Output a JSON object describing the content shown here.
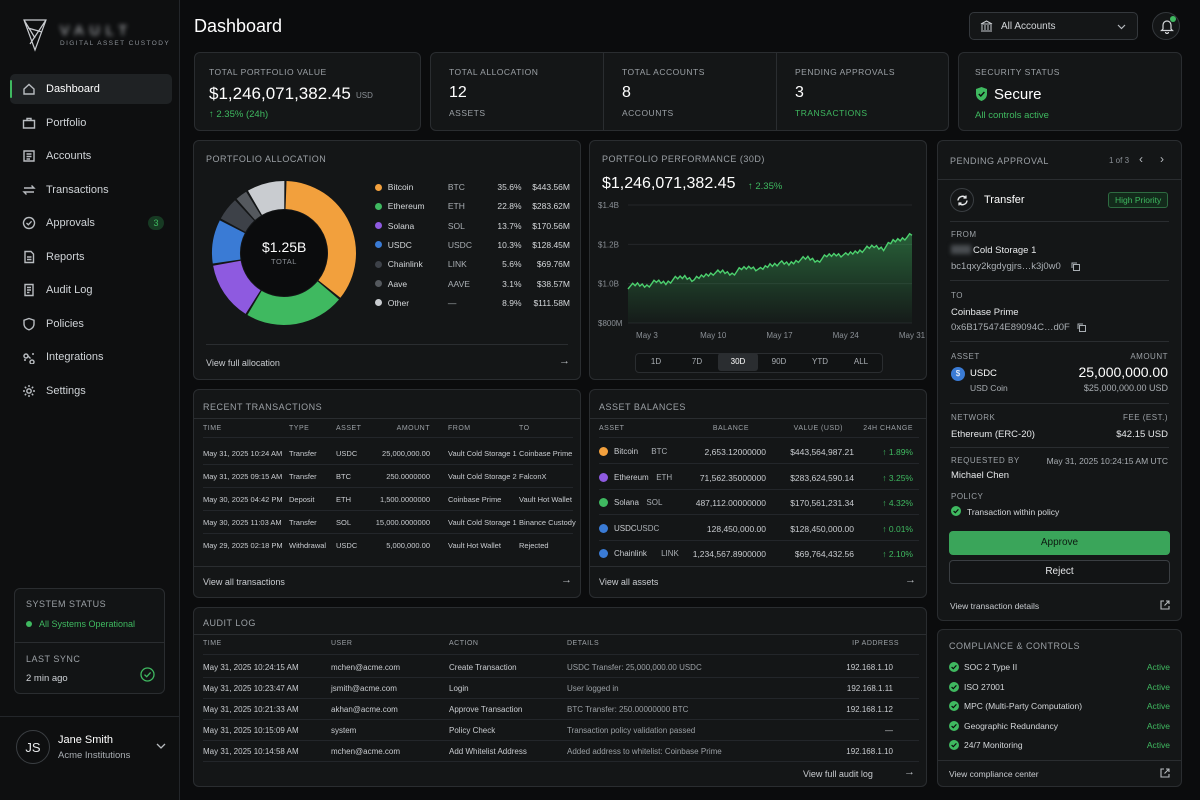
{
  "brand": {
    "name": "VAULT",
    "tagline": "DIGITAL ASSET CUSTODY"
  },
  "sidebar": {
    "items": [
      {
        "label": "Dashboard",
        "icon": "home-icon"
      },
      {
        "label": "Portfolio",
        "icon": "briefcase-icon"
      },
      {
        "label": "Accounts",
        "icon": "accounts-icon"
      },
      {
        "label": "Transactions",
        "icon": "transfer-icon"
      },
      {
        "label": "Approvals",
        "icon": "check-circle-icon",
        "badge": "3"
      },
      {
        "label": "Reports",
        "icon": "report-icon"
      },
      {
        "label": "Audit Log",
        "icon": "audit-icon"
      },
      {
        "label": "Policies",
        "icon": "shield-icon"
      },
      {
        "label": "Integrations",
        "icon": "integrations-icon"
      },
      {
        "label": "Settings",
        "icon": "gear-icon"
      }
    ],
    "system_status_label": "SYSTEM STATUS",
    "system_status_value": "All Systems Operational",
    "last_sync_label": "LAST SYNC",
    "last_sync_value": "2 min ago",
    "user": {
      "initials": "JS",
      "name": "Jane Smith",
      "org": "Acme Institutions"
    }
  },
  "header": {
    "title": "Dashboard",
    "account_select": "All Accounts"
  },
  "kpis": {
    "portfolio": {
      "label": "TOTAL PORTFOLIO VALUE",
      "value": "$1,246,071,382.45",
      "unit": "USD",
      "change": "↑ 2.35% (24h)"
    },
    "allocation": {
      "label": "TOTAL ALLOCATION",
      "value": "12",
      "sub": "ASSETS"
    },
    "accounts": {
      "label": "TOTAL ACCOUNTS",
      "value": "8",
      "sub": "ACCOUNTS"
    },
    "pending": {
      "label": "PENDING APPROVALS",
      "value": "3",
      "sub": "TRANSACTIONS"
    },
    "security": {
      "label": "SECURITY STATUS",
      "value": "Secure",
      "sub": "All controls active"
    }
  },
  "allocation": {
    "title": "PORTFOLIO ALLOCATION",
    "center_value": "$1.25B",
    "center_label": "TOTAL",
    "link": "View full allocation",
    "items": [
      {
        "name": "Bitcoin",
        "ticker": "BTC",
        "pct": "35.6%",
        "value": "$443.56M",
        "share": 35.6,
        "color": "#f2a03d"
      },
      {
        "name": "Ethereum",
        "ticker": "ETH",
        "pct": "22.8%",
        "value": "$283.62M",
        "share": 22.8,
        "color": "#3fb960"
      },
      {
        "name": "Solana",
        "ticker": "SOL",
        "pct": "13.7%",
        "value": "$170.56M",
        "share": 13.7,
        "color": "#8e5ae0"
      },
      {
        "name": "USDC",
        "ticker": "USDC",
        "pct": "10.3%",
        "value": "$128.45M",
        "share": 10.3,
        "color": "#3a7bd5"
      },
      {
        "name": "Chainlink",
        "ticker": "LINK",
        "pct": "5.6%",
        "value": "$69.76M",
        "share": 5.6,
        "color": "#3d4148"
      },
      {
        "name": "Aave",
        "ticker": "AAVE",
        "pct": "3.1%",
        "value": "$38.57M",
        "share": 3.1,
        "color": "#55595e"
      },
      {
        "name": "Other",
        "ticker": "—",
        "pct": "8.9%",
        "value": "$111.58M",
        "share": 8.9,
        "color": "#c9ccd0"
      }
    ]
  },
  "performance": {
    "title": "PORTFOLIO PERFORMANCE (30D)",
    "value": "$1,246,071,382.45",
    "change": "↑ 2.35%",
    "ranges": [
      "1D",
      "7D",
      "30D",
      "90D",
      "YTD",
      "ALL"
    ],
    "active_range": "30D"
  },
  "chart_data": {
    "type": "area",
    "title": "PORTFOLIO PERFORMANCE (30D)",
    "x": [
      "May 1",
      "May 2",
      "May 3",
      "May 4",
      "May 5",
      "May 6",
      "May 7",
      "May 8",
      "May 9",
      "May 10",
      "May 11",
      "May 12",
      "May 13",
      "May 14",
      "May 15",
      "May 16",
      "May 17",
      "May 18",
      "May 19",
      "May 20",
      "May 21",
      "May 22",
      "May 23",
      "May 24",
      "May 25",
      "May 26",
      "May 27",
      "May 28",
      "May 29",
      "May 30",
      "May 31"
    ],
    "xticks": [
      "May 3",
      "May 10",
      "May 17",
      "May 24",
      "May 31"
    ],
    "yticks": [
      "$800M",
      "$1.0B",
      "$1.2B",
      "$1.4B"
    ],
    "ylim": [
      800,
      1400
    ],
    "series": [
      {
        "values": [
          985,
          995,
          990,
          1010,
          1005,
          1025,
          1035,
          1020,
          1040,
          1055,
          1060,
          1050,
          1075,
          1085,
          1070,
          1095,
          1105,
          1100,
          1120,
          1130,
          1115,
          1140,
          1150,
          1145,
          1160,
          1175,
          1190,
          1180,
          1215,
          1230,
          1246
        ]
      }
    ]
  },
  "recent_transactions": {
    "title": "RECENT TRANSACTIONS",
    "headers": [
      "TIME",
      "TYPE",
      "ASSET",
      "AMOUNT",
      "FROM",
      "TO"
    ],
    "rows": [
      [
        "May 31, 2025 10:24 AM",
        "Transfer",
        "USDC",
        "25,000,000.00",
        "Vault Cold Storage 1",
        "Coinbase Prime"
      ],
      [
        "May 31, 2025 09:15 AM",
        "Transfer",
        "BTC",
        "250.0000000",
        "Vault Cold Storage 2",
        "FalconX"
      ],
      [
        "May 30, 2025 04:42 PM",
        "Deposit",
        "ETH",
        "1,500.0000000",
        "Coinbase Prime",
        "Vault Hot Wallet"
      ],
      [
        "May 30, 2025 11:03 AM",
        "Transfer",
        "SOL",
        "15,000.0000000",
        "Vault Cold Storage 1",
        "Binance Custody"
      ],
      [
        "May 29, 2025 02:18 PM",
        "Withdrawal",
        "USDC",
        "5,000,000.00",
        "Vault Hot Wallet",
        "Rejected"
      ]
    ],
    "link": "View all transactions"
  },
  "asset_balances": {
    "title": "ASSET BALANCES",
    "headers": [
      "ASSET",
      "BALANCE",
      "VALUE (USD)",
      "24H CHANGE"
    ],
    "rows": [
      {
        "name": "Bitcoin",
        "ticker": "BTC",
        "balance": "2,653.12000000",
        "value": "$443,564,987.21",
        "change": "↑ 1.89%",
        "color": "#f2a03d"
      },
      {
        "name": "Ethereum",
        "ticker": "ETH",
        "balance": "71,562.35000000",
        "value": "$283,624,590.14",
        "change": "↑ 3.25%",
        "color": "#8e5ae0"
      },
      {
        "name": "Solana",
        "ticker": "SOL",
        "balance": "487,112.00000000",
        "value": "$170,561,231.34",
        "change": "↑ 4.32%",
        "color": "#3fb960"
      },
      {
        "name": "USDC",
        "ticker": "USDC",
        "balance": "128,450,000.00",
        "value": "$128,450,000.00",
        "change": "↑ 0.01%",
        "color": "#3a7bd5"
      },
      {
        "name": "Chainlink",
        "ticker": "LINK",
        "balance": "1,234,567.8900000",
        "value": "$69,764,432.56",
        "change": "↑ 2.10%",
        "color": "#3a7bd5"
      }
    ],
    "link": "View all assets"
  },
  "audit_log": {
    "title": "AUDIT LOG",
    "headers": [
      "TIME",
      "USER",
      "ACTION",
      "DETAILS",
      "IP ADDRESS"
    ],
    "rows": [
      [
        "May 31, 2025 10:24:15 AM",
        "mchen@acme.com",
        "Create Transaction",
        "USDC Transfer: 25,000,000.00 USDC",
        "192.168.1.10"
      ],
      [
        "May 31, 2025 10:23:47 AM",
        "jsmith@acme.com",
        "Login",
        "User logged in",
        "192.168.1.11"
      ],
      [
        "May 31, 2025 10:21:33 AM",
        "akhan@acme.com",
        "Approve Transaction",
        "BTC Transfer: 250.00000000 BTC",
        "192.168.1.12"
      ],
      [
        "May 31, 2025 10:15:09 AM",
        "system",
        "Policy Check",
        "Transaction policy validation passed",
        "—"
      ],
      [
        "May 31, 2025 10:14:58 AM",
        "mchen@acme.com",
        "Add Whitelist Address",
        "Added address to whitelist: Coinbase Prime",
        "192.168.1.10"
      ]
    ],
    "link": "View full audit log"
  },
  "pending_approval": {
    "title": "PENDING APPROVAL",
    "pager": "1 of 3",
    "type": "Transfer",
    "priority": "High Priority",
    "from_label": "FROM",
    "from_name": "Cold Storage 1",
    "from_addr": "bc1qxy2kgdygjrs…k3j0w0",
    "to_label": "TO",
    "to_name": "Coinbase Prime",
    "to_addr": "0x6B175474E89094C…d0F",
    "asset_label": "ASSET",
    "asset": "USDC",
    "asset_full": "USD Coin",
    "amount_label": "AMOUNT",
    "amount": "25,000,000.00",
    "amount_usd": "$25,000,000.00 USD",
    "network_label": "NETWORK",
    "network": "Ethereum (ERC-20)",
    "fee_label": "FEE (EST.)",
    "fee": "$42.15 USD",
    "requested_label": "REQUESTED BY",
    "requested_time": "May 31, 2025 10:24:15 AM UTC",
    "requested_by": "Michael Chen",
    "policy_label": "POLICY",
    "policy": "Transaction within policy",
    "approve": "Approve",
    "reject": "Reject",
    "details_link": "View transaction details"
  },
  "compliance": {
    "title": "COMPLIANCE & CONTROLS",
    "items": [
      {
        "name": "SOC 2 Type II",
        "status": "Active"
      },
      {
        "name": "ISO 27001",
        "status": "Active"
      },
      {
        "name": "MPC (Multi-Party Computation)",
        "status": "Active"
      },
      {
        "name": "Geographic Redundancy",
        "status": "Active"
      },
      {
        "name": "24/7 Monitoring",
        "status": "Active"
      }
    ],
    "link": "View compliance center"
  }
}
